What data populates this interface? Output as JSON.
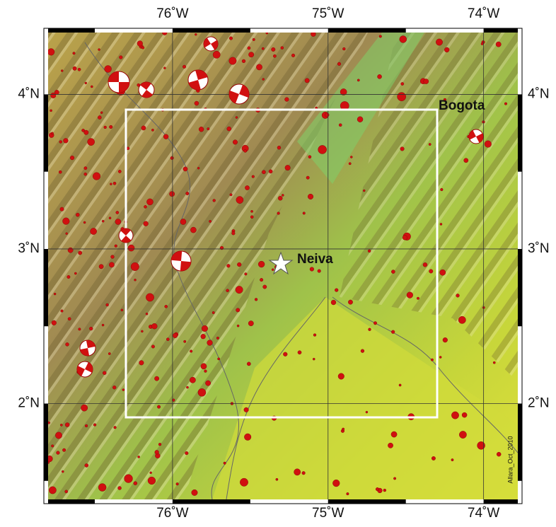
{
  "map": {
    "lonlim": [
      -76.8,
      -73.78
    ],
    "latlim": [
      1.38,
      4.4
    ],
    "lon_ticks": [
      {
        "value": -76,
        "label": "76˚W"
      },
      {
        "value": -75,
        "label": "75˚W"
      },
      {
        "value": -74,
        "label": "74˚W"
      }
    ],
    "lat_ticks": [
      {
        "value": 4,
        "label": "4˚N"
      },
      {
        "value": 3,
        "label": "3˚N"
      },
      {
        "value": 2,
        "label": "2˚N"
      }
    ],
    "cities": [
      {
        "name": "Bogota"
      },
      {
        "name": "Neiva"
      }
    ],
    "credit": "Allara_Oct_2010"
  }
}
